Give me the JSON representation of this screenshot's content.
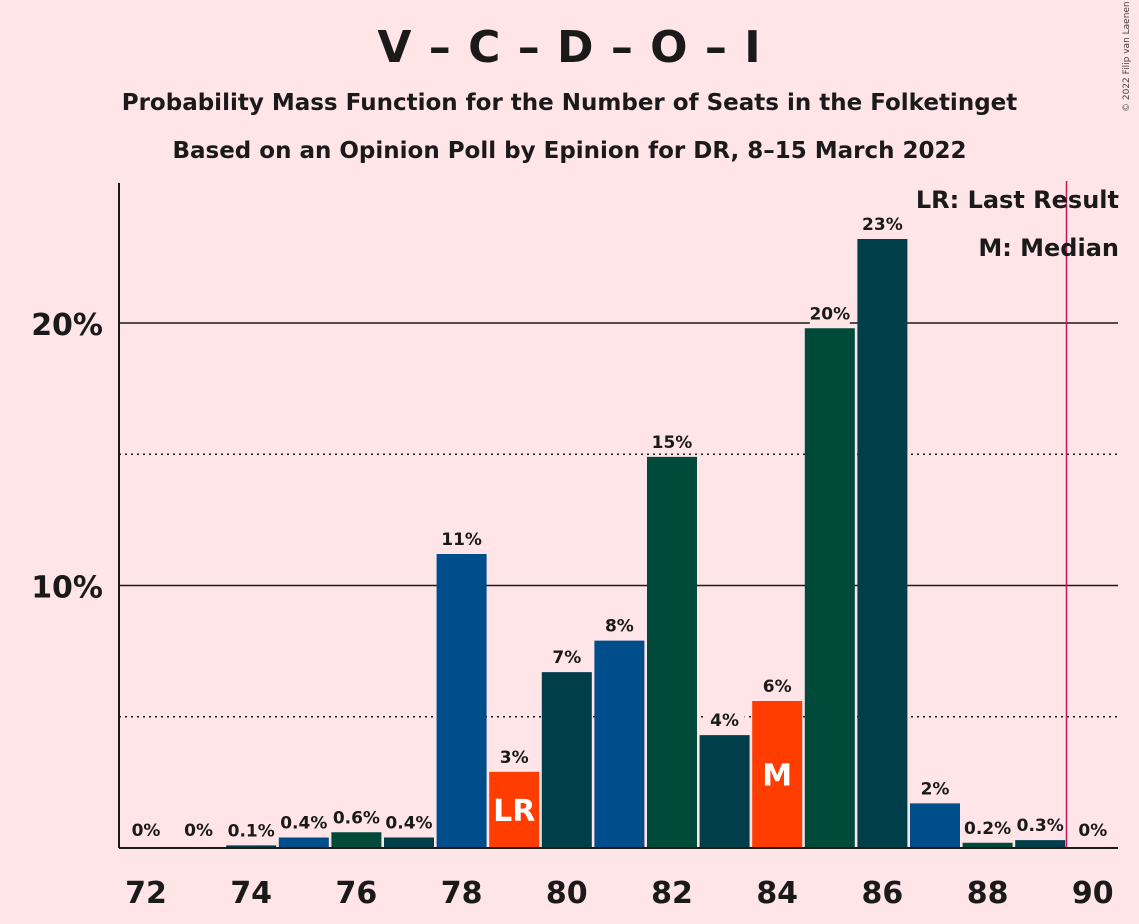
{
  "header": {
    "title": "V – C – D – O – I",
    "subtitle_line1": "Probability Mass Function for the Number of Seats in the Folketinget",
    "subtitle_line2": "Based on an Opinion Poll by Epinion for DR, 8–15 March 2022",
    "copyright": "© 2022 Filip van Laenen"
  },
  "legend": {
    "last_result": "LR: Last Result",
    "median": "M: Median"
  },
  "colors": {
    "background": "#FFE4E8",
    "bar_palette": [
      "#004D8C",
      "#004A3A",
      "#003F4A"
    ],
    "highlight": "#FF3D00",
    "majority_line": "#C2185B"
  },
  "chart_data": {
    "type": "bar",
    "xlabel": "",
    "ylabel": "",
    "ylim": [
      0,
      25.2
    ],
    "y_solid_gridlines": [
      10,
      20
    ],
    "y_dotted_gridlines": [
      5,
      15
    ],
    "y_ticks": [
      {
        "value": 10,
        "label": "10%"
      },
      {
        "value": 20,
        "label": "20%"
      }
    ],
    "x_tick_labels": [
      "72",
      "74",
      "76",
      "78",
      "80",
      "82",
      "84",
      "86",
      "88",
      "90"
    ],
    "majority_line_x": 89.5,
    "last_result_seat": 79,
    "median_seat": 84,
    "last_result_marker": "LR",
    "median_marker": "M",
    "categories": [
      72,
      73,
      74,
      75,
      76,
      77,
      78,
      79,
      80,
      81,
      82,
      83,
      84,
      85,
      86,
      87,
      88,
      89,
      90
    ],
    "values": [
      0,
      0,
      0.1,
      0.4,
      0.6,
      0.4,
      11.2,
      2.9,
      6.7,
      7.9,
      14.9,
      4.3,
      5.6,
      19.8,
      23.2,
      1.7,
      0.2,
      0.3,
      0
    ],
    "data_labels": [
      "0%",
      "0%",
      "0.1%",
      "0.4%",
      "0.6%",
      "0.4%",
      "11%",
      "3%",
      "7%",
      "8%",
      "15%",
      "4%",
      "6%",
      "20%",
      "23%",
      "2%",
      "0.2%",
      "0.3%",
      "0%"
    ]
  }
}
